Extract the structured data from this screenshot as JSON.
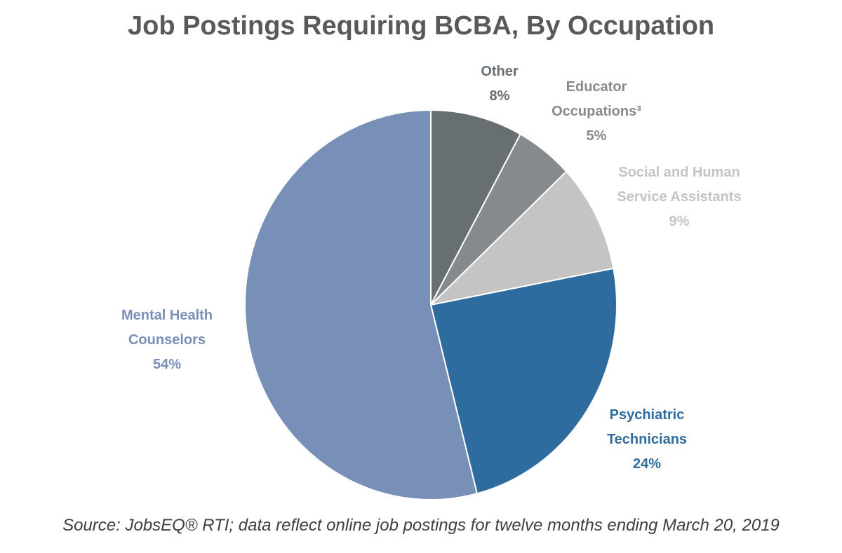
{
  "chart_data": {
    "type": "pie",
    "title": "Job Postings Requiring BCBA, By Occupation",
    "slices": [
      {
        "label_lines": [
          "Other"
        ],
        "value": 8,
        "value_label": "8%",
        "color": "#676f73"
      },
      {
        "label_lines": [
          "Educator",
          "Occupations³"
        ],
        "value": 5,
        "value_label": "5%",
        "color": "#858b8d"
      },
      {
        "label_lines": [
          "Social and Human",
          "Service Assistants"
        ],
        "value": 9,
        "value_label": "9%",
        "color": "#c4c4c4"
      },
      {
        "label_lines": [
          "Psychiatric",
          "Technicians"
        ],
        "value": 24,
        "value_label": "24%",
        "color": "#2e6ca0"
      },
      {
        "label_lines": [
          "Mental Health",
          "Counselors"
        ],
        "value": 54,
        "value_label": "54%",
        "color": "#7890b8"
      }
    ],
    "label_colors": [
      "#676f73",
      "#858b8d",
      "#c4c4c4",
      "#2e6ca0",
      "#7890b8"
    ],
    "start_angle": "12 o'clock",
    "direction": "clockwise",
    "legend": "none"
  },
  "footer": {
    "source": "Source: JobsEQ® RTI; data reflect online job postings for twelve months ending March 20, 2019"
  }
}
